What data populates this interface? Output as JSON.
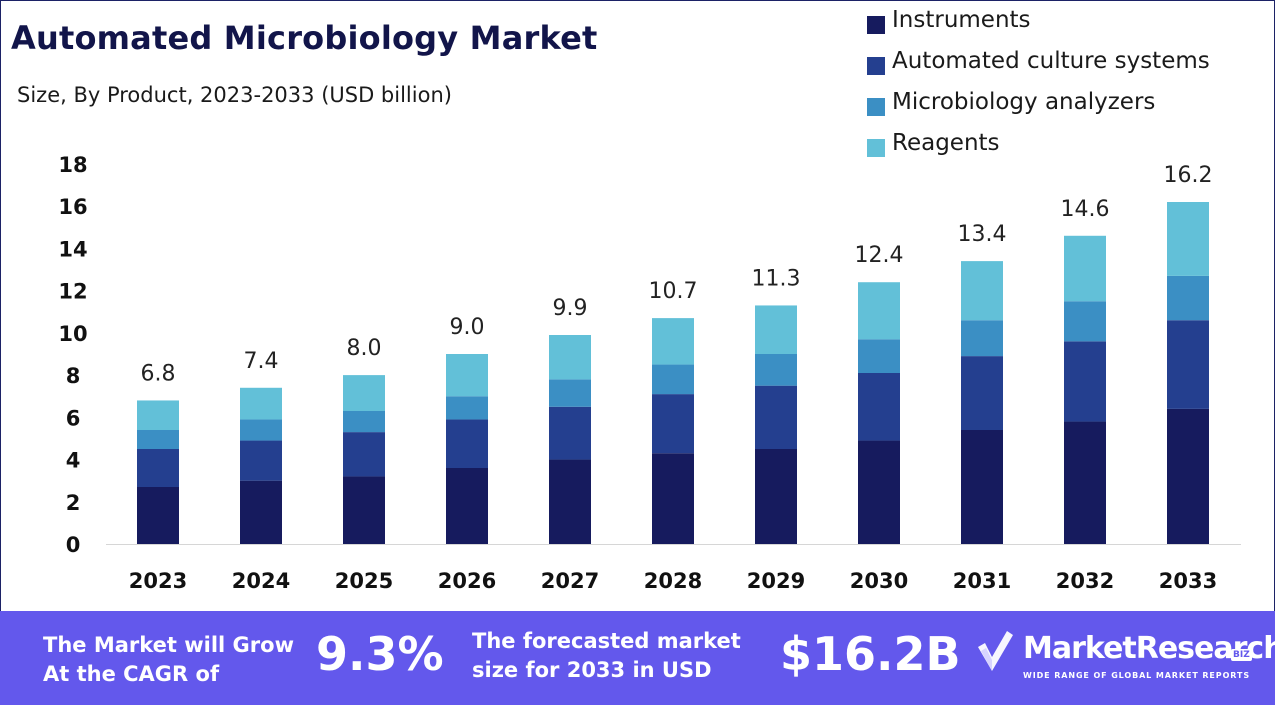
{
  "header": {
    "title": "Automated Microbiology Market",
    "subtitle": "Size, By Product, 2023-2033 (USD billion)"
  },
  "colors": {
    "instruments": "#161b5e",
    "automated_culture_systems": "#243f8f",
    "microbiology_analyzers": "#3b8fc4",
    "reagents": "#62c0d8",
    "banner": "#6358ec"
  },
  "chart_data": {
    "type": "bar",
    "stacked": true,
    "categories": [
      "2023",
      "2024",
      "2025",
      "2026",
      "2027",
      "2028",
      "2029",
      "2030",
      "2031",
      "2032",
      "2033"
    ],
    "series": [
      {
        "name": "Instruments",
        "values": [
          2.7,
          3.0,
          3.2,
          3.6,
          4.0,
          4.3,
          4.5,
          4.9,
          5.4,
          5.8,
          6.4
        ]
      },
      {
        "name": "Automated culture systems",
        "values": [
          1.8,
          1.9,
          2.1,
          2.3,
          2.5,
          2.8,
          3.0,
          3.2,
          3.5,
          3.8,
          4.2
        ]
      },
      {
        "name": "Microbiology analyzers",
        "values": [
          0.9,
          1.0,
          1.0,
          1.1,
          1.3,
          1.4,
          1.5,
          1.6,
          1.7,
          1.9,
          2.1
        ]
      },
      {
        "name": "Reagents",
        "values": [
          1.4,
          1.5,
          1.7,
          2.0,
          2.1,
          2.2,
          2.3,
          2.7,
          2.8,
          3.1,
          3.5
        ]
      }
    ],
    "totals": [
      "6.8",
      "7.4",
      "8.0",
      "9.0",
      "9.9",
      "10.7",
      "11.3",
      "12.4",
      "13.4",
      "14.6",
      "16.2"
    ],
    "ylim": [
      0,
      18
    ],
    "yticks": [
      "0",
      "2",
      "4",
      "6",
      "8",
      "10",
      "12",
      "14",
      "16",
      "18"
    ],
    "legend_position": "top-right",
    "grid": false
  },
  "banner": {
    "cagr_label": "The Market will Grow At the CAGR of",
    "cagr_value": "9.3%",
    "forecast_label": "The forecasted market size for 2033 in USD",
    "forecast_value": "$16.2B",
    "brand_name": "MarketResearch",
    "brand_badge": "BIZ",
    "brand_tagline": "WIDE RANGE OF GLOBAL MARKET REPORTS"
  }
}
